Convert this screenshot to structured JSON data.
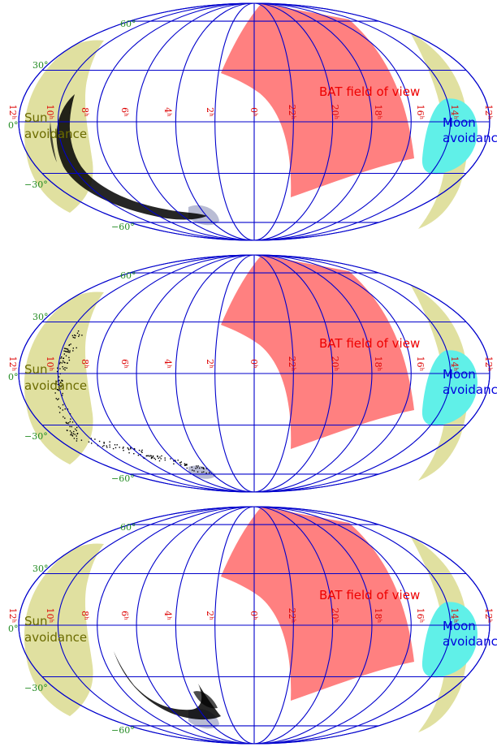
{
  "colors": {
    "grid": "#0000cc",
    "lat_label": "#228b22",
    "ra_label": "#dd0000",
    "bat": "#ff8080",
    "sun_fill": "#e0e0a0",
    "sun_text": "#6b6b00",
    "moon_fill": "#60f0e8",
    "moon_text": "#0000dd",
    "bat_text": "#ee0000",
    "density": "#000000",
    "shadow": "#8a8fb8"
  },
  "lat_labels": [
    "60°",
    "30°",
    "0°",
    "−30°",
    "−60°"
  ],
  "ra_labels": [
    "12ʰ",
    "10ʰ",
    "8ʰ",
    "6ʰ",
    "4ʰ",
    "2ʰ",
    "0ʰ",
    "22ʰ",
    "20ʰ",
    "18ʰ",
    "16ʰ",
    "14ʰ",
    "12ʰ"
  ],
  "labels": {
    "bat": "BAT field of view",
    "sun_line1": "Sun",
    "sun_line2": "avoidance",
    "moon_line1": "Moon",
    "moon_line2": "avoidance"
  },
  "panels": [
    {
      "id": "top",
      "density_style": "smooth-arc"
    },
    {
      "id": "middle",
      "density_style": "scattered-points"
    },
    {
      "id": "bottom",
      "density_style": "smooth-arc-lower"
    }
  ]
}
